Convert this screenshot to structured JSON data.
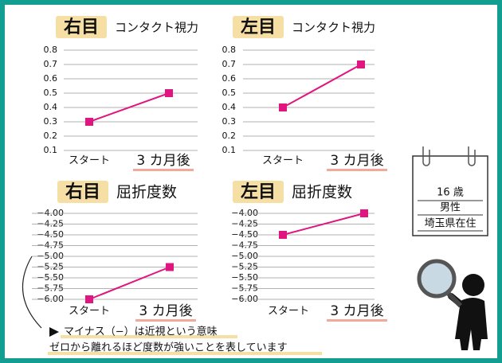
{
  "chart_data": [
    {
      "type": "line",
      "badge": "右目",
      "title": "コンタクト視力",
      "categories": [
        "スタート",
        "3 カ月後"
      ],
      "values": [
        0.3,
        0.5
      ],
      "color": "#e0157f",
      "ylim": [
        0.1,
        0.8
      ],
      "yticks": [
        0.1,
        0.2,
        0.3,
        0.4,
        0.5,
        0.6,
        0.7,
        0.8
      ],
      "grid": true
    },
    {
      "type": "line",
      "badge": "左目",
      "title": "コンタクト視力",
      "categories": [
        "スタート",
        "3 カ月後"
      ],
      "values": [
        0.4,
        0.7
      ],
      "color": "#e0157f",
      "ylim": [
        0.1,
        0.8
      ],
      "yticks": [
        0.1,
        0.2,
        0.3,
        0.4,
        0.5,
        0.6,
        0.7,
        0.8
      ],
      "grid": true
    },
    {
      "type": "line",
      "badge": "右目",
      "title": "屈折度数",
      "categories": [
        "スタート",
        "3 カ月後"
      ],
      "values": [
        -6.0,
        -5.25
      ],
      "color": "#e0157f",
      "ylim": [
        -6.0,
        -4.0
      ],
      "yticks": [
        {
          "value": -6.0,
          "label": "−6.00"
        },
        {
          "value": -5.75,
          "label": "−5.75"
        },
        {
          "value": -5.5,
          "label": "−5.50"
        },
        {
          "value": -5.25,
          "label": "−5.25"
        },
        {
          "value": -5.0,
          "label": "−5.00"
        },
        {
          "value": -4.75,
          "label": "−4.75"
        },
        {
          "value": -4.5,
          "label": "−4.50"
        },
        {
          "value": -4.25,
          "label": "−4.25"
        },
        {
          "value": -4.0,
          "label": "−4.00"
        }
      ],
      "grid": true
    },
    {
      "type": "line",
      "badge": "左目",
      "title": "屈折度数",
      "categories": [
        "スタート",
        "3 カ月後"
      ],
      "values": [
        -4.5,
        -4.0
      ],
      "color": "#e0157f",
      "ylim": [
        -6.0,
        -4.0
      ],
      "yticks": [
        {
          "value": -6.0,
          "label": "−6.00"
        },
        {
          "value": -5.75,
          "label": "−5.75"
        },
        {
          "value": -5.5,
          "label": "−5.50"
        },
        {
          "value": -5.25,
          "label": "−5.25"
        },
        {
          "value": -5.0,
          "label": "−5.00"
        },
        {
          "value": -4.75,
          "label": "−4.75"
        },
        {
          "value": -4.5,
          "label": "−4.50"
        },
        {
          "value": -4.25,
          "label": "−4.25"
        },
        {
          "value": -4.0,
          "label": "−4.00"
        }
      ],
      "grid": true
    }
  ],
  "profile": {
    "age": "16 歳",
    "sex": "男性",
    "residence": "埼玉県在住"
  },
  "note": {
    "line1": "マイナス（−）は近視という意味",
    "line2": "ゼロから離れるほど度数が強いことを表しています"
  }
}
